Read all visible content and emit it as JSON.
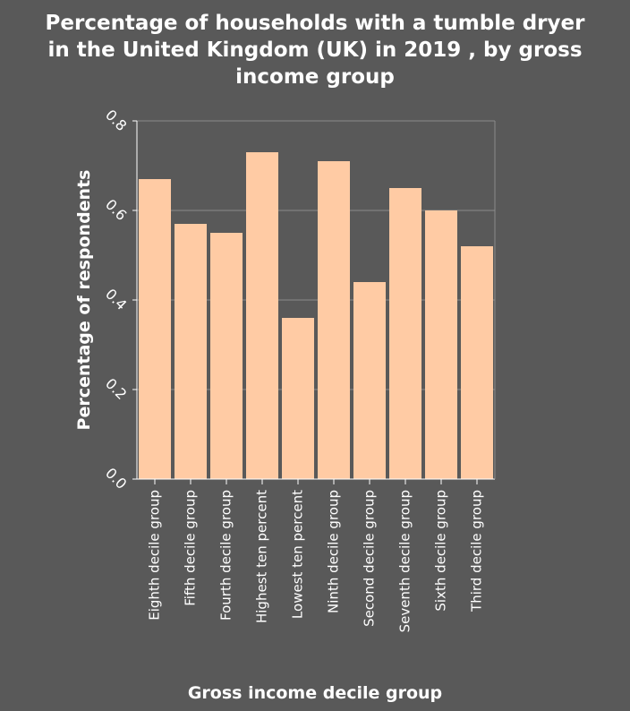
{
  "chart_data": {
    "type": "bar",
    "title_lines": [
      "Percentage of households with a tumble dryer",
      "in the United Kingdom (UK) in 2019 , by gross",
      "income group"
    ],
    "xlabel": "Gross income decile group",
    "ylabel": "Percentage of respondents",
    "ylim": [
      0,
      0.8
    ],
    "yticks": [
      "0.0",
      "0.2",
      "0.4",
      "0.6",
      "0.8"
    ],
    "grid": true,
    "categories": [
      "Eighth decile group",
      "Fifth decile group",
      "Fourth decile group",
      "Highest ten percent",
      "Lowest ten percent",
      "Ninth decile group",
      "Second decile group",
      "Seventh decile group",
      "Sixth decile group",
      "Third decile group"
    ],
    "values": [
      0.67,
      0.57,
      0.55,
      0.73,
      0.36,
      0.71,
      0.44,
      0.65,
      0.6,
      0.52
    ],
    "colors": {
      "background": "#595959",
      "bar": "#ffcba4",
      "grid": "#8c8c8c",
      "axis": "#ffffff",
      "text": "#ffffff"
    }
  }
}
